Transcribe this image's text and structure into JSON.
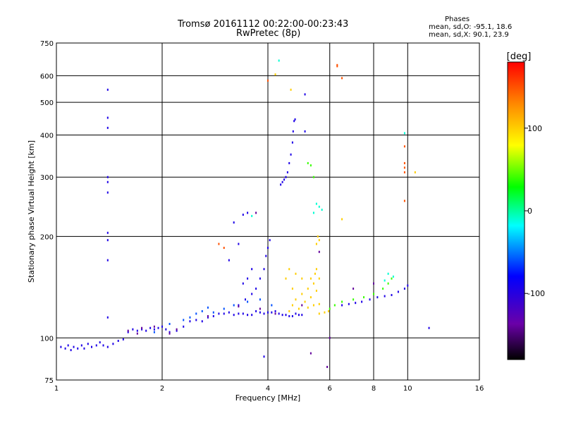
{
  "header": {
    "title_line1": "Tromsø 20161112 00:22:00-00:23:43",
    "title_line2": "RwPretec (8p)",
    "stats_heading": "Phases",
    "stats_o": "mean, sd,O: -95.1, 18.6",
    "stats_x": "mean, sd,X:  90.1, 23.9"
  },
  "chart_data": {
    "type": "scatter",
    "xlabel": "Frequency [MHz]",
    "ylabel": "Stationary phase Virtual Height [km]",
    "x_scale": "log",
    "y_scale": "log",
    "xlim": [
      1,
      16
    ],
    "ylim": [
      75,
      750
    ],
    "x_ticks": [
      1,
      2,
      4,
      6,
      8,
      10,
      16
    ],
    "x_tick_labels": [
      "1",
      "2",
      "4",
      "6",
      "8",
      "10",
      "16"
    ],
    "y_ticks": [
      75,
      100,
      200,
      300,
      400,
      500,
      600,
      750
    ],
    "y_tick_labels": [
      "75",
      "100",
      "200",
      "300",
      "400",
      "500",
      "600",
      "750"
    ],
    "grid": true,
    "colorbar": {
      "label": "[deg]",
      "range": [
        -180,
        180
      ],
      "ticks": [
        -100,
        0,
        100
      ],
      "tick_labels": [
        "-100",
        "0",
        "100"
      ]
    },
    "series": [
      {
        "phase": -95,
        "points": [
          [
            1.03,
            94
          ],
          [
            1.06,
            93
          ],
          [
            1.08,
            95
          ],
          [
            1.1,
            92
          ],
          [
            1.12,
            94
          ],
          [
            1.15,
            93
          ],
          [
            1.18,
            95
          ],
          [
            1.2,
            93
          ],
          [
            1.23,
            96
          ],
          [
            1.26,
            94
          ],
          [
            1.3,
            95
          ],
          [
            1.33,
            97
          ],
          [
            1.36,
            95
          ],
          [
            1.4,
            94
          ],
          [
            1.45,
            96
          ],
          [
            1.5,
            98
          ],
          [
            1.55,
            99
          ],
          [
            1.6,
            104
          ],
          [
            1.65,
            106
          ],
          [
            1.7,
            105
          ],
          [
            1.75,
            106
          ],
          [
            1.8,
            105
          ],
          [
            1.85,
            107
          ],
          [
            1.9,
            106
          ],
          [
            1.95,
            107
          ],
          [
            2.0,
            108
          ],
          [
            2.05,
            106
          ],
          [
            2.1,
            104
          ],
          [
            2.2,
            105
          ],
          [
            2.3,
            108
          ],
          [
            2.4,
            112
          ],
          [
            2.5,
            113
          ],
          [
            2.6,
            112
          ],
          [
            2.7,
            115
          ],
          [
            2.8,
            116
          ],
          [
            2.9,
            118
          ],
          [
            3.0,
            118
          ],
          [
            3.1,
            119
          ],
          [
            3.2,
            117
          ],
          [
            3.3,
            118
          ],
          [
            3.4,
            118
          ],
          [
            3.5,
            117
          ],
          [
            3.6,
            117
          ],
          [
            3.7,
            120
          ],
          [
            3.8,
            119
          ],
          [
            3.9,
            118
          ],
          [
            4.0,
            119
          ],
          [
            4.1,
            119
          ],
          [
            4.2,
            120
          ],
          [
            4.3,
            118
          ],
          [
            4.4,
            117
          ],
          [
            4.5,
            117
          ],
          [
            4.6,
            116
          ],
          [
            4.7,
            116
          ],
          [
            4.8,
            118
          ],
          [
            4.9,
            117
          ],
          [
            5.0,
            117
          ],
          [
            3.3,
            125
          ],
          [
            3.45,
            130
          ],
          [
            3.6,
            135
          ],
          [
            3.7,
            140
          ],
          [
            3.8,
            150
          ],
          [
            3.9,
            160
          ],
          [
            3.95,
            175
          ],
          [
            4.0,
            185
          ],
          [
            4.05,
            195
          ],
          [
            3.5,
            235
          ],
          [
            3.4,
            232
          ],
          [
            3.6,
            160
          ],
          [
            3.5,
            150
          ],
          [
            3.3,
            190
          ],
          [
            3.2,
            220
          ],
          [
            3.4,
            145
          ],
          [
            3.1,
            170
          ],
          [
            4.35,
            285
          ],
          [
            4.4,
            290
          ],
          [
            4.45,
            295
          ],
          [
            4.5,
            300
          ],
          [
            4.55,
            310
          ],
          [
            4.6,
            330
          ],
          [
            4.65,
            350
          ],
          [
            4.7,
            380
          ],
          [
            4.72,
            410
          ],
          [
            4.75,
            440
          ],
          [
            4.78,
            445
          ],
          [
            1.4,
            545
          ],
          [
            1.4,
            450
          ],
          [
            1.4,
            420
          ],
          [
            1.4,
            270
          ],
          [
            1.4,
            290
          ],
          [
            1.4,
            300
          ],
          [
            1.4,
            205
          ],
          [
            1.4,
            195
          ],
          [
            1.4,
            170
          ],
          [
            1.4,
            115
          ],
          [
            6.5,
            125
          ],
          [
            6.8,
            126
          ],
          [
            7.1,
            127
          ],
          [
            7.4,
            128
          ],
          [
            7.8,
            130
          ],
          [
            8.2,
            132
          ],
          [
            8.6,
            133
          ],
          [
            9.0,
            134
          ],
          [
            9.4,
            137
          ],
          [
            9.8,
            140
          ],
          [
            10.0,
            143
          ],
          [
            11.5,
            107
          ],
          [
            5.1,
            528
          ],
          [
            5.1,
            410
          ],
          [
            3.9,
            88
          ]
        ]
      },
      {
        "phase": 150,
        "points": [
          [
            4.0,
            580
          ],
          [
            6.3,
            645
          ],
          [
            6.3,
            640
          ],
          [
            6.5,
            590
          ],
          [
            9.8,
            370
          ],
          [
            9.8,
            330
          ],
          [
            9.8,
            320
          ],
          [
            9.8,
            255
          ],
          [
            2.9,
            190
          ],
          [
            9.8,
            310
          ],
          [
            3.0,
            185
          ]
        ]
      },
      {
        "phase": 100,
        "points": [
          [
            4.6,
            120
          ],
          [
            4.7,
            125
          ],
          [
            4.8,
            130
          ],
          [
            4.9,
            122
          ],
          [
            5.0,
            135
          ],
          [
            5.1,
            128
          ],
          [
            5.2,
            140
          ],
          [
            5.3,
            132
          ],
          [
            5.4,
            145
          ],
          [
            5.5,
            138
          ],
          [
            5.6,
            126
          ],
          [
            4.5,
            150
          ],
          [
            4.6,
            160
          ],
          [
            4.7,
            140
          ],
          [
            4.8,
            155
          ],
          [
            5.0,
            150
          ],
          [
            5.2,
            123
          ],
          [
            5.4,
            125
          ],
          [
            5.6,
            118
          ],
          [
            5.8,
            119
          ],
          [
            5.95,
            120
          ],
          [
            5.5,
            190
          ],
          [
            5.55,
            200
          ],
          [
            5.6,
            195
          ],
          [
            5.5,
            160
          ],
          [
            5.3,
            150
          ],
          [
            5.45,
            155
          ],
          [
            5.6,
            150
          ],
          [
            4.65,
            545
          ],
          [
            4.2,
            605
          ],
          [
            10.5,
            310
          ],
          [
            6.5,
            225
          ]
        ]
      },
      {
        "phase": 40,
        "points": [
          [
            5.2,
            330
          ],
          [
            5.3,
            325
          ],
          [
            6.0,
            122
          ],
          [
            6.2,
            125
          ],
          [
            6.5,
            128
          ],
          [
            7.0,
            130
          ],
          [
            7.5,
            132
          ],
          [
            8.0,
            135
          ],
          [
            8.5,
            140
          ],
          [
            8.8,
            145
          ],
          [
            9.0,
            150
          ],
          [
            5.4,
            300
          ]
        ]
      },
      {
        "phase": -10,
        "points": [
          [
            5.5,
            250
          ],
          [
            5.6,
            245
          ],
          [
            5.7,
            240
          ],
          [
            5.4,
            235
          ],
          [
            4.3,
            665
          ],
          [
            9.8,
            405
          ],
          [
            8.6,
            148
          ],
          [
            8.8,
            155
          ],
          [
            9.1,
            152
          ],
          [
            3.6,
            230
          ]
        ]
      },
      {
        "phase": -60,
        "points": [
          [
            2.5,
            118
          ],
          [
            2.6,
            120
          ],
          [
            2.7,
            123
          ],
          [
            2.8,
            119
          ],
          [
            2.4,
            115
          ],
          [
            3.0,
            122
          ],
          [
            3.2,
            125
          ],
          [
            3.5,
            128
          ],
          [
            3.8,
            130
          ],
          [
            4.1,
            125
          ],
          [
            1.9,
            104
          ],
          [
            2.1,
            110
          ],
          [
            2.3,
            113
          ]
        ]
      },
      {
        "phase": -140,
        "points": [
          [
            1.7,
            103
          ],
          [
            1.75,
            107
          ],
          [
            1.9,
            108
          ],
          [
            2.1,
            103
          ],
          [
            2.2,
            106
          ],
          [
            2.7,
            116
          ],
          [
            3.3,
            124
          ],
          [
            3.8,
            122
          ],
          [
            4.2,
            118
          ],
          [
            5.0,
            125
          ],
          [
            5.6,
            180
          ],
          [
            7.0,
            140
          ],
          [
            8.0,
            145
          ],
          [
            5.3,
            90
          ],
          [
            5.9,
            82
          ],
          [
            6.0,
            100
          ],
          [
            3.7,
            235
          ],
          [
            1.6,
            105
          ]
        ]
      }
    ]
  }
}
